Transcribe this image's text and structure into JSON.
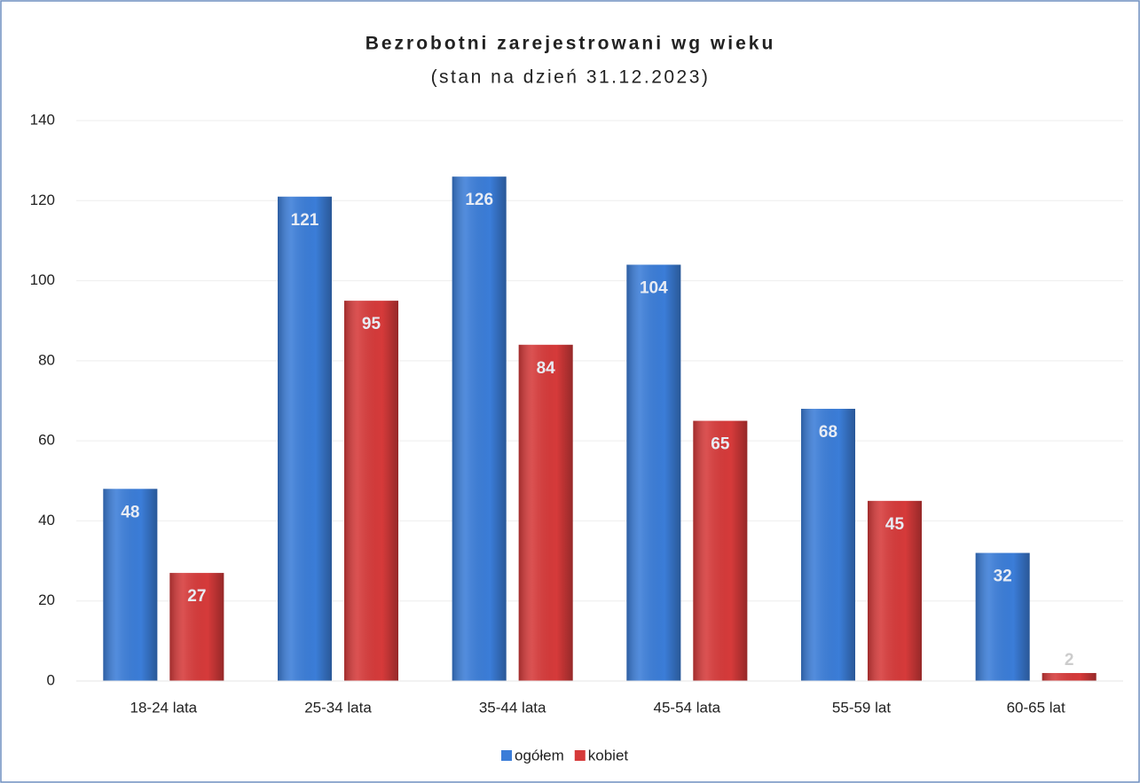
{
  "chart_data": {
    "type": "bar",
    "title": "Bezrobotni zarejestrowani wg wieku",
    "subtitle": "(stan na dzień 31.12.2023)",
    "categories": [
      "18-24 lata",
      "25-34 lata",
      "35-44 lata",
      "45-54 lata",
      "55-59 lat",
      "60-65 lat"
    ],
    "series": [
      {
        "name": "ogółem",
        "color": "#3b7dd8",
        "values": [
          48,
          121,
          126,
          104,
          68,
          32
        ]
      },
      {
        "name": "kobiet",
        "color": "#d63a3a",
        "values": [
          27,
          95,
          84,
          65,
          45,
          2
        ]
      }
    ],
    "ylim": [
      0,
      140
    ],
    "yticks": [
      0,
      20,
      40,
      60,
      80,
      100,
      120,
      140
    ],
    "grid": true,
    "legend": "bottom"
  }
}
